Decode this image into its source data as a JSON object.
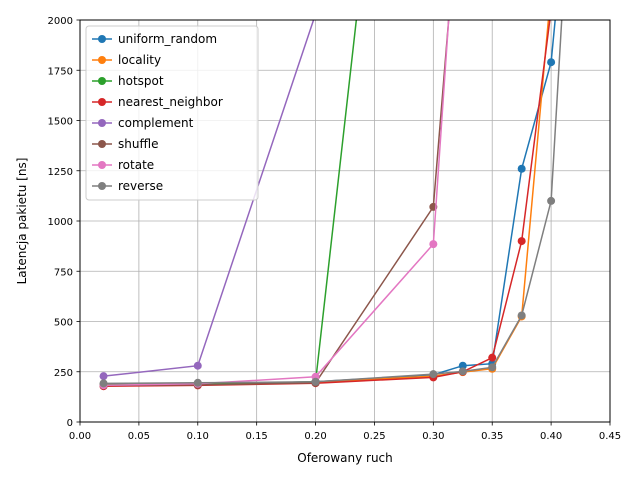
{
  "chart_data": {
    "type": "line",
    "title": "",
    "xlabel": "Oferowany ruch",
    "ylabel": "Latencja pakietu [ns]",
    "xlim": [
      0.0,
      0.45
    ],
    "ylim": [
      0,
      2000
    ],
    "xticks": [
      0.0,
      0.05,
      0.1,
      0.15,
      0.2,
      0.25,
      0.3,
      0.35,
      0.4,
      0.45
    ],
    "xtick_labels": [
      "0.00",
      "0.05",
      "0.10",
      "0.15",
      "0.20",
      "0.25",
      "0.30",
      "0.35",
      "0.40",
      "0.45"
    ],
    "yticks": [
      0,
      250,
      500,
      750,
      1000,
      1250,
      1500,
      1750,
      2000
    ],
    "ytick_labels": [
      "0",
      "250",
      "500",
      "750",
      "1000",
      "1250",
      "1500",
      "1750",
      "2000"
    ],
    "grid": true,
    "legend_position": "top-left",
    "series": [
      {
        "name": "uniform_random",
        "color": "#1f77b4",
        "points": [
          [
            0.02,
            185
          ],
          [
            0.1,
            188
          ],
          [
            0.2,
            200
          ],
          [
            0.3,
            235
          ],
          [
            0.325,
            280
          ],
          [
            0.35,
            290
          ],
          [
            0.375,
            1260
          ],
          [
            0.4,
            1790
          ],
          [
            0.41,
            2400
          ]
        ]
      },
      {
        "name": "locality",
        "color": "#ff7f0e",
        "points": [
          [
            0.02,
            185
          ],
          [
            0.1,
            187
          ],
          [
            0.2,
            198
          ],
          [
            0.3,
            228
          ],
          [
            0.325,
            248
          ],
          [
            0.35,
            265
          ],
          [
            0.375,
            525
          ],
          [
            0.4,
            2150
          ]
        ]
      },
      {
        "name": "hotspot",
        "color": "#2ca02c",
        "points": [
          [
            0.02,
            185
          ],
          [
            0.1,
            188
          ],
          [
            0.2,
            200
          ],
          [
            0.25,
            2800
          ]
        ]
      },
      {
        "name": "nearest_neighbor",
        "color": "#d62728",
        "points": [
          [
            0.02,
            178
          ],
          [
            0.1,
            182
          ],
          [
            0.2,
            193
          ],
          [
            0.3,
            222
          ],
          [
            0.325,
            250
          ],
          [
            0.35,
            320
          ],
          [
            0.375,
            900
          ],
          [
            0.4,
            2050
          ]
        ]
      },
      {
        "name": "complement",
        "color": "#9467bd",
        "points": [
          [
            0.02,
            228
          ],
          [
            0.1,
            280
          ],
          [
            0.2,
            2030
          ]
        ]
      },
      {
        "name": "shuffle",
        "color": "#8c564b",
        "points": [
          [
            0.02,
            182
          ],
          [
            0.1,
            185
          ],
          [
            0.2,
            195
          ],
          [
            0.3,
            1070
          ],
          [
            0.32,
            2500
          ]
        ]
      },
      {
        "name": "rotate",
        "color": "#e377c2",
        "points": [
          [
            0.02,
            183
          ],
          [
            0.1,
            190
          ],
          [
            0.2,
            225
          ],
          [
            0.3,
            885
          ],
          [
            0.32,
            2600
          ]
        ]
      },
      {
        "name": "reverse",
        "color": "#7f7f7f",
        "points": [
          [
            0.02,
            192
          ],
          [
            0.1,
            195
          ],
          [
            0.2,
            200
          ],
          [
            0.3,
            238
          ],
          [
            0.325,
            252
          ],
          [
            0.35,
            272
          ],
          [
            0.375,
            530
          ],
          [
            0.4,
            1100
          ],
          [
            0.41,
            2100
          ]
        ]
      }
    ]
  }
}
